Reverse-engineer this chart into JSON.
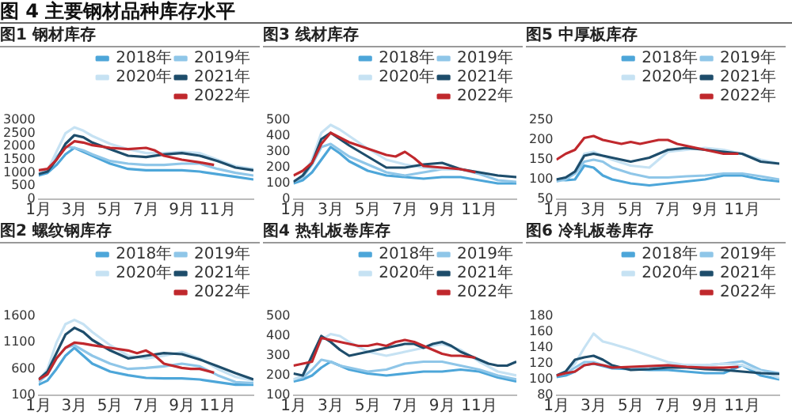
{
  "chart_data": [
    {
      "type": "other",
      "title": "图 4 主要钢材品种库存水平"
    },
    {
      "type": "line",
      "title": "图1 钢材库存",
      "x": [
        1,
        1.5,
        2,
        2.5,
        3,
        3.5,
        4,
        5,
        6,
        7,
        8,
        9,
        10,
        11,
        12,
        13
      ],
      "xlim": [
        1,
        13
      ],
      "xticks": [
        {
          "value": 1,
          "label": "1月"
        },
        {
          "value": 3,
          "label": "3月"
        },
        {
          "value": 5,
          "label": "5月"
        },
        {
          "value": 7,
          "label": "7月"
        },
        {
          "value": 9,
          "label": "9月"
        },
        {
          "value": 11,
          "label": "11月"
        }
      ],
      "ylim": [
        0,
        3000
      ],
      "yticks": [
        0,
        500,
        1000,
        1500,
        2000,
        2500,
        3000
      ],
      "legend": "top right",
      "series": [
        {
          "name": "2018年",
          "color": "#4da6d9",
          "values": [
            900,
            1000,
            1300,
            1700,
            1950,
            1800,
            1650,
            1350,
            1150,
            1100,
            1100,
            1100,
            1050,
            950,
            850,
            750
          ]
        },
        {
          "name": "2019年",
          "color": "#8fc6e8",
          "values": [
            950,
            1100,
            1600,
            2000,
            1950,
            1850,
            1700,
            1450,
            1350,
            1300,
            1300,
            1350,
            1350,
            1150,
            1000,
            900
          ]
        },
        {
          "name": "2020年",
          "color": "#c6e2f3",
          "values": [
            950,
            1100,
            1800,
            2500,
            2730,
            2600,
            2400,
            2100,
            1900,
            1750,
            1750,
            1800,
            1750,
            1500,
            1250,
            1150
          ]
        },
        {
          "name": "2021年",
          "color": "#1e4d6b",
          "values": [
            950,
            1050,
            1500,
            2100,
            2430,
            2350,
            2150,
            1900,
            1650,
            1600,
            1700,
            1750,
            1650,
            1450,
            1200,
            1100
          ]
        },
        {
          "name": "2022年",
          "color": "#c0282d",
          "x": [
            1,
            1.5,
            2,
            2.5,
            3,
            3.5,
            4,
            5,
            6,
            7,
            7.5,
            8,
            9,
            10,
            10.8
          ],
          "values": [
            1100,
            1150,
            1500,
            1950,
            2200,
            2150,
            2050,
            1950,
            1900,
            1950,
            1850,
            1650,
            1500,
            1400,
            1300
          ]
        }
      ]
    },
    {
      "type": "line",
      "title": "图3 线材库存",
      "x": [
        1,
        1.5,
        2,
        2.5,
        3,
        3.5,
        4,
        5,
        6,
        7,
        8,
        9,
        10,
        11,
        12,
        13
      ],
      "xlim": [
        1,
        13
      ],
      "xticks": [
        {
          "value": 1,
          "label": "1月"
        },
        {
          "value": 3,
          "label": "3月"
        },
        {
          "value": 5,
          "label": "5月"
        },
        {
          "value": 7,
          "label": "7月"
        },
        {
          "value": 9,
          "label": "9月"
        },
        {
          "value": 11,
          "label": "11月"
        }
      ],
      "ylim": [
        0,
        500
      ],
      "yticks": [
        0,
        100,
        200,
        300,
        400,
        500
      ],
      "legend": "top right",
      "series": [
        {
          "name": "2018年",
          "color": "#4da6d9",
          "values": [
            100,
            120,
            170,
            250,
            330,
            290,
            240,
            180,
            150,
            140,
            130,
            140,
            140,
            120,
            100,
            100
          ]
        },
        {
          "name": "2019年",
          "color": "#8fc6e8",
          "values": [
            110,
            140,
            220,
            330,
            350,
            310,
            270,
            220,
            170,
            150,
            170,
            190,
            190,
            160,
            120,
            110
          ]
        },
        {
          "name": "2020年",
          "color": "#c6e2f3",
          "values": [
            110,
            150,
            250,
            420,
            470,
            440,
            400,
            320,
            250,
            220,
            200,
            190,
            190,
            170,
            150,
            140
          ]
        },
        {
          "name": "2021年",
          "color": "#1e4d6b",
          "values": [
            110,
            150,
            230,
            380,
            420,
            380,
            340,
            270,
            200,
            200,
            220,
            230,
            190,
            170,
            150,
            140
          ]
        },
        {
          "name": "2022年",
          "color": "#c0282d",
          "x": [
            1,
            1.5,
            2,
            2.5,
            3,
            3.5,
            4,
            5,
            6,
            6.5,
            7,
            7.5,
            8,
            9,
            10,
            10.8
          ],
          "values": [
            150,
            180,
            230,
            350,
            420,
            390,
            360,
            320,
            280,
            270,
            300,
            260,
            210,
            200,
            190,
            170
          ]
        }
      ]
    },
    {
      "type": "line",
      "title": "图5 中厚板库存",
      "x": [
        1,
        1.5,
        2,
        2.5,
        3,
        3.5,
        4,
        5,
        6,
        7,
        8,
        9,
        10,
        11,
        12,
        13
      ],
      "xlim": [
        1,
        13
      ],
      "xticks": [
        {
          "value": 1,
          "label": "1月"
        },
        {
          "value": 3,
          "label": "3月"
        },
        {
          "value": 5,
          "label": "5月"
        },
        {
          "value": 7,
          "label": "7月"
        },
        {
          "value": 9,
          "label": "9月"
        },
        {
          "value": 11,
          "label": "11月"
        }
      ],
      "ylim": [
        50,
        250
      ],
      "yticks": [
        50,
        100,
        150,
        200,
        250
      ],
      "legend": "top right",
      "series": [
        {
          "name": "2018年",
          "color": "#4da6d9",
          "values": [
            100,
            98,
            100,
            135,
            130,
            110,
            100,
            90,
            85,
            90,
            95,
            100,
            110,
            110,
            100,
            95
          ]
        },
        {
          "name": "2019年",
          "color": "#8fc6e8",
          "values": [
            95,
            100,
            115,
            145,
            150,
            145,
            130,
            115,
            105,
            105,
            108,
            110,
            115,
            115,
            108,
            100
          ]
        },
        {
          "name": "2020年",
          "color": "#c6e2f3",
          "values": [
            100,
            105,
            120,
            165,
            170,
            160,
            150,
            135,
            130,
            170,
            175,
            180,
            175,
            165,
            150,
            140
          ]
        },
        {
          "name": "2021年",
          "color": "#1e4d6b",
          "values": [
            100,
            105,
            120,
            160,
            165,
            160,
            155,
            145,
            155,
            175,
            180,
            175,
            170,
            165,
            145,
            140
          ]
        },
        {
          "name": "2022年",
          "color": "#c0282d",
          "x": [
            1,
            1.5,
            2,
            2.5,
            3,
            3.5,
            4,
            4.5,
            5,
            5.5,
            6,
            6.5,
            7,
            7.5,
            8,
            8.5,
            9,
            9.5,
            10,
            10.8
          ],
          "values": [
            150,
            165,
            175,
            205,
            210,
            200,
            195,
            190,
            195,
            190,
            195,
            200,
            200,
            190,
            185,
            180,
            175,
            170,
            165,
            165
          ]
        }
      ]
    },
    {
      "type": "line",
      "title": "图2 螺纹钢库存",
      "x": [
        1,
        1.5,
        2,
        2.5,
        3,
        3.5,
        4,
        5,
        6,
        7,
        8,
        9,
        10,
        11,
        12,
        13
      ],
      "xlim": [
        1,
        13
      ],
      "xticks": [
        {
          "value": 1,
          "label": "1月"
        },
        {
          "value": 3,
          "label": "3月"
        },
        {
          "value": 5,
          "label": "5月"
        },
        {
          "value": 7,
          "label": "7月"
        },
        {
          "value": 9,
          "label": "9月"
        },
        {
          "value": 11,
          "label": "11月"
        }
      ],
      "ylim": [
        100,
        1600
      ],
      "yticks": [
        100,
        600,
        1100,
        1600
      ],
      "legend": "top right",
      "series": [
        {
          "name": "2018年",
          "color": "#4da6d9",
          "values": [
            300,
            380,
            600,
            850,
            1000,
            850,
            700,
            550,
            480,
            430,
            420,
            420,
            400,
            350,
            300,
            300
          ]
        },
        {
          "name": "2019年",
          "color": "#8fc6e8",
          "values": [
            350,
            500,
            800,
            1000,
            1050,
            950,
            850,
            700,
            600,
            620,
            650,
            700,
            650,
            480,
            350,
            330
          ]
        },
        {
          "name": "2020年",
          "color": "#c6e2f3",
          "values": [
            380,
            600,
            1100,
            1450,
            1530,
            1450,
            1300,
            1050,
            850,
            800,
            850,
            920,
            800,
            600,
            450,
            380
          ]
        },
        {
          "name": "2021年",
          "color": "#1e4d6b",
          "values": [
            400,
            550,
            900,
            1250,
            1380,
            1300,
            1150,
            950,
            800,
            850,
            900,
            880,
            780,
            650,
            520,
            400
          ]
        },
        {
          "name": "2022年",
          "color": "#c0282d",
          "x": [
            1,
            1.5,
            2,
            2.5,
            3,
            3.5,
            4,
            5,
            6,
            6.5,
            7,
            7.5,
            8,
            9,
            9.5,
            10,
            10.8
          ],
          "values": [
            400,
            500,
            800,
            1000,
            1100,
            1080,
            1050,
            1000,
            950,
            900,
            950,
            850,
            700,
            620,
            600,
            600,
            530
          ]
        }
      ]
    },
    {
      "type": "line",
      "title": "图4 热轧板卷库存",
      "x": [
        1,
        1.5,
        2,
        2.5,
        3,
        3.5,
        4,
        5,
        6,
        7,
        8,
        9,
        10,
        11,
        12,
        13
      ],
      "xlim": [
        1,
        13
      ],
      "xticks": [
        {
          "value": 1,
          "label": "1月"
        },
        {
          "value": 3,
          "label": "3月"
        },
        {
          "value": 5,
          "label": "5月"
        },
        {
          "value": 7,
          "label": "7月"
        },
        {
          "value": 9,
          "label": "9月"
        },
        {
          "value": 11,
          "label": "11月"
        }
      ],
      "ylim": [
        100,
        500
      ],
      "yticks": [
        100,
        200,
        300,
        400,
        500
      ],
      "legend": "top right",
      "series": [
        {
          "name": "2018年",
          "color": "#4da6d9",
          "values": [
            170,
            180,
            200,
            240,
            270,
            250,
            230,
            210,
            200,
            210,
            220,
            220,
            230,
            220,
            190,
            170
          ]
        },
        {
          "name": "2019年",
          "color": "#8fc6e8",
          "values": [
            180,
            190,
            230,
            280,
            270,
            250,
            240,
            220,
            230,
            260,
            270,
            270,
            250,
            230,
            200,
            180
          ]
        },
        {
          "name": "2020年",
          "color": "#c6e2f3",
          "values": [
            180,
            200,
            280,
            380,
            410,
            400,
            370,
            320,
            300,
            320,
            340,
            360,
            330,
            270,
            220,
            200
          ]
        },
        {
          "name": "2021年",
          "color": "#1e4d6b",
          "x": [
            1,
            1.5,
            2,
            2.5,
            3,
            3.5,
            4,
            4.5,
            5,
            6,
            7,
            7.5,
            8,
            8.5,
            9,
            9.5,
            10,
            10.5,
            11,
            11.5,
            12,
            12.5,
            13
          ],
          "values": [
            210,
            200,
            300,
            400,
            370,
            330,
            300,
            310,
            320,
            340,
            360,
            360,
            340,
            360,
            370,
            350,
            320,
            300,
            280,
            260,
            250,
            250,
            270
          ]
        },
        {
          "name": "2022年",
          "color": "#c0282d",
          "x": [
            1,
            1.5,
            2,
            2.5,
            3,
            3.5,
            4,
            4.5,
            5,
            5.5,
            6,
            6.5,
            7,
            7.5,
            8,
            8.5,
            9,
            9.5,
            10,
            10.8
          ],
          "values": [
            250,
            260,
            270,
            390,
            380,
            370,
            360,
            350,
            350,
            360,
            350,
            370,
            380,
            370,
            350,
            330,
            310,
            300,
            300,
            290
          ]
        }
      ]
    },
    {
      "type": "line",
      "title": "图6 冷轧板卷库存",
      "x": [
        1,
        1.5,
        2,
        2.5,
        3,
        3.5,
        4,
        5,
        6,
        7,
        8,
        9,
        10,
        11,
        12,
        13
      ],
      "xlim": [
        1,
        13
      ],
      "xticks": [
        {
          "value": 1,
          "label": "1月"
        },
        {
          "value": 3,
          "label": "3月"
        },
        {
          "value": 5,
          "label": "5月"
        },
        {
          "value": 7,
          "label": "7月"
        },
        {
          "value": 9,
          "label": "9月"
        },
        {
          "value": 11,
          "label": "11月"
        }
      ],
      "ylim": [
        80,
        180
      ],
      "yticks": [
        80,
        100,
        120,
        140,
        160,
        180
      ],
      "legend": "top right",
      "series": [
        {
          "name": "2018年",
          "color": "#4da6d9",
          "values": [
            103,
            105,
            110,
            118,
            120,
            117,
            114,
            113,
            112,
            112,
            110,
            108,
            108,
            118,
            105,
            100
          ]
        },
        {
          "name": "2019年",
          "color": "#8fc6e8",
          "values": [
            105,
            108,
            115,
            122,
            122,
            118,
            116,
            115,
            116,
            118,
            118,
            118,
            120,
            123,
            112,
            108
          ]
        },
        {
          "name": "2020年",
          "color": "#c6e2f3",
          "values": [
            105,
            110,
            120,
            140,
            158,
            148,
            145,
            138,
            130,
            122,
            118,
            118,
            120,
            118,
            110,
            102
          ]
        },
        {
          "name": "2021年",
          "color": "#1e4d6b",
          "values": [
            105,
            110,
            125,
            128,
            130,
            125,
            118,
            112,
            113,
            115,
            115,
            113,
            112,
            110,
            108,
            107
          ]
        },
        {
          "name": "2022年",
          "color": "#c0282d",
          "x": [
            1,
            1.5,
            2,
            2.5,
            3,
            3.5,
            4,
            5,
            6,
            7,
            7.5,
            8,
            9,
            10,
            10.8
          ],
          "values": [
            105,
            108,
            110,
            118,
            120,
            118,
            115,
            116,
            117,
            118,
            117,
            116,
            115,
            115,
            116
          ]
        }
      ]
    }
  ]
}
